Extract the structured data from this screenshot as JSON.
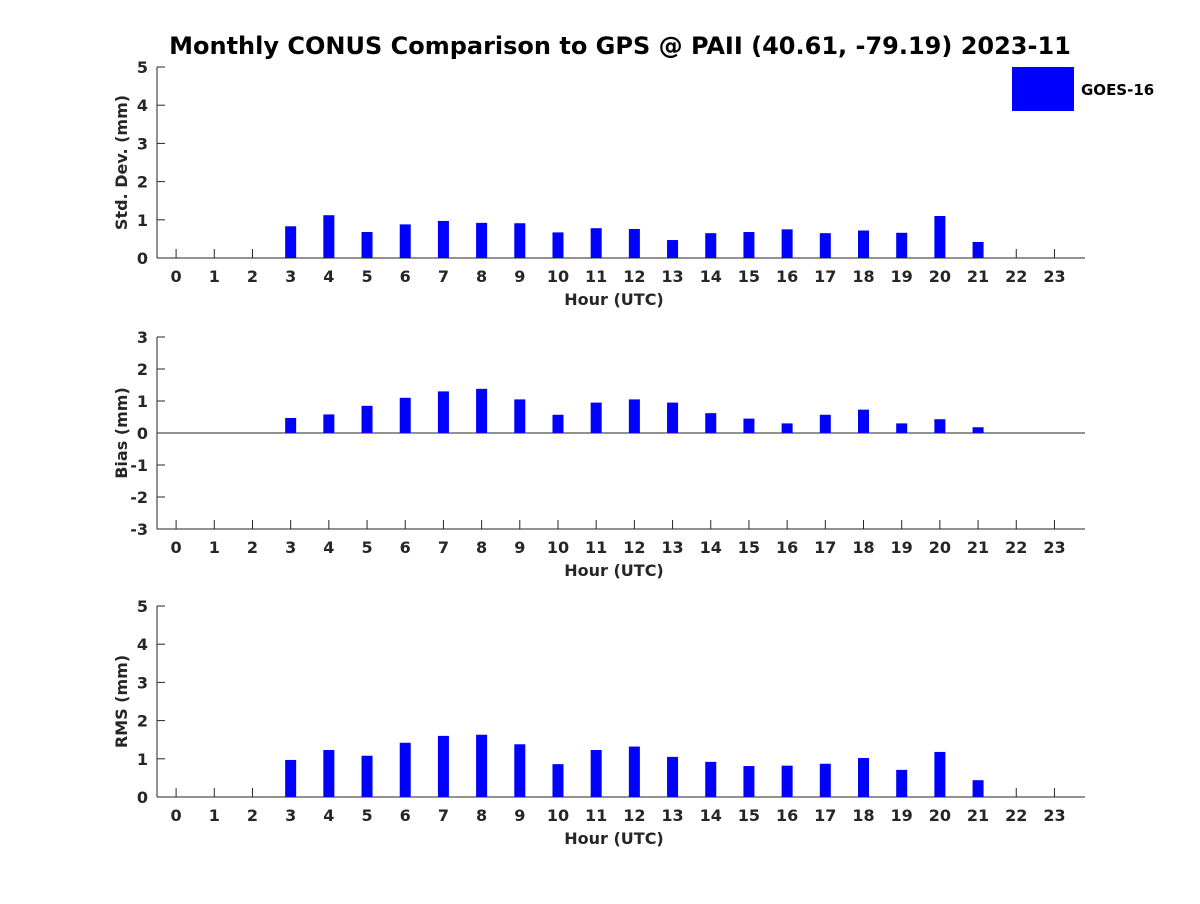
{
  "title": "Monthly CONUS Comparison to GPS @ PAII (40.61, -79.19) 2023-11",
  "legend": {
    "label": "GOES-16",
    "color": "#0000ff",
    "placement": "top-right"
  },
  "chart_data": [
    {
      "type": "bar",
      "xlabel": "Hour (UTC)",
      "ylabel": "Std. Dev. (mm)",
      "ylim": [
        0,
        5
      ],
      "yticks": [
        "0",
        "1",
        "2",
        "3",
        "4",
        "5"
      ],
      "categories": [
        "0",
        "1",
        "2",
        "3",
        "4",
        "5",
        "6",
        "7",
        "8",
        "9",
        "10",
        "11",
        "12",
        "13",
        "14",
        "15",
        "16",
        "17",
        "18",
        "19",
        "20",
        "21",
        "22",
        "23"
      ],
      "series": [
        {
          "name": "GOES-16",
          "values": [
            null,
            null,
            null,
            0.83,
            1.12,
            0.68,
            0.88,
            0.97,
            0.92,
            0.91,
            0.67,
            0.78,
            0.76,
            0.47,
            0.65,
            0.68,
            0.75,
            0.65,
            0.72,
            0.66,
            1.1,
            0.42,
            null,
            null
          ]
        }
      ]
    },
    {
      "type": "bar",
      "xlabel": "Hour (UTC)",
      "ylabel": "Bias (mm)",
      "ylim": [
        -3,
        3
      ],
      "yticks": [
        "-3",
        "-2",
        "-1",
        "0",
        "1",
        "2",
        "3"
      ],
      "categories": [
        "0",
        "1",
        "2",
        "3",
        "4",
        "5",
        "6",
        "7",
        "8",
        "9",
        "10",
        "11",
        "12",
        "13",
        "14",
        "15",
        "16",
        "17",
        "18",
        "19",
        "20",
        "21",
        "22",
        "23"
      ],
      "series": [
        {
          "name": "GOES-16",
          "values": [
            null,
            null,
            null,
            0.47,
            0.58,
            0.85,
            1.1,
            1.3,
            1.38,
            1.05,
            0.57,
            0.95,
            1.05,
            0.95,
            0.62,
            0.45,
            0.3,
            0.57,
            0.73,
            0.3,
            0.43,
            0.18,
            null,
            null
          ]
        }
      ]
    },
    {
      "type": "bar",
      "xlabel": "Hour (UTC)",
      "ylabel": "RMS (mm)",
      "ylim": [
        0,
        5
      ],
      "yticks": [
        "0",
        "1",
        "2",
        "3",
        "4",
        "5"
      ],
      "categories": [
        "0",
        "1",
        "2",
        "3",
        "4",
        "5",
        "6",
        "7",
        "8",
        "9",
        "10",
        "11",
        "12",
        "13",
        "14",
        "15",
        "16",
        "17",
        "18",
        "19",
        "20",
        "21",
        "22",
        "23"
      ],
      "series": [
        {
          "name": "GOES-16",
          "values": [
            null,
            null,
            null,
            0.97,
            1.23,
            1.08,
            1.42,
            1.6,
            1.63,
            1.38,
            0.86,
            1.23,
            1.32,
            1.05,
            0.92,
            0.81,
            0.82,
            0.87,
            1.02,
            0.71,
            1.18,
            0.44,
            null,
            null
          ]
        }
      ]
    }
  ]
}
